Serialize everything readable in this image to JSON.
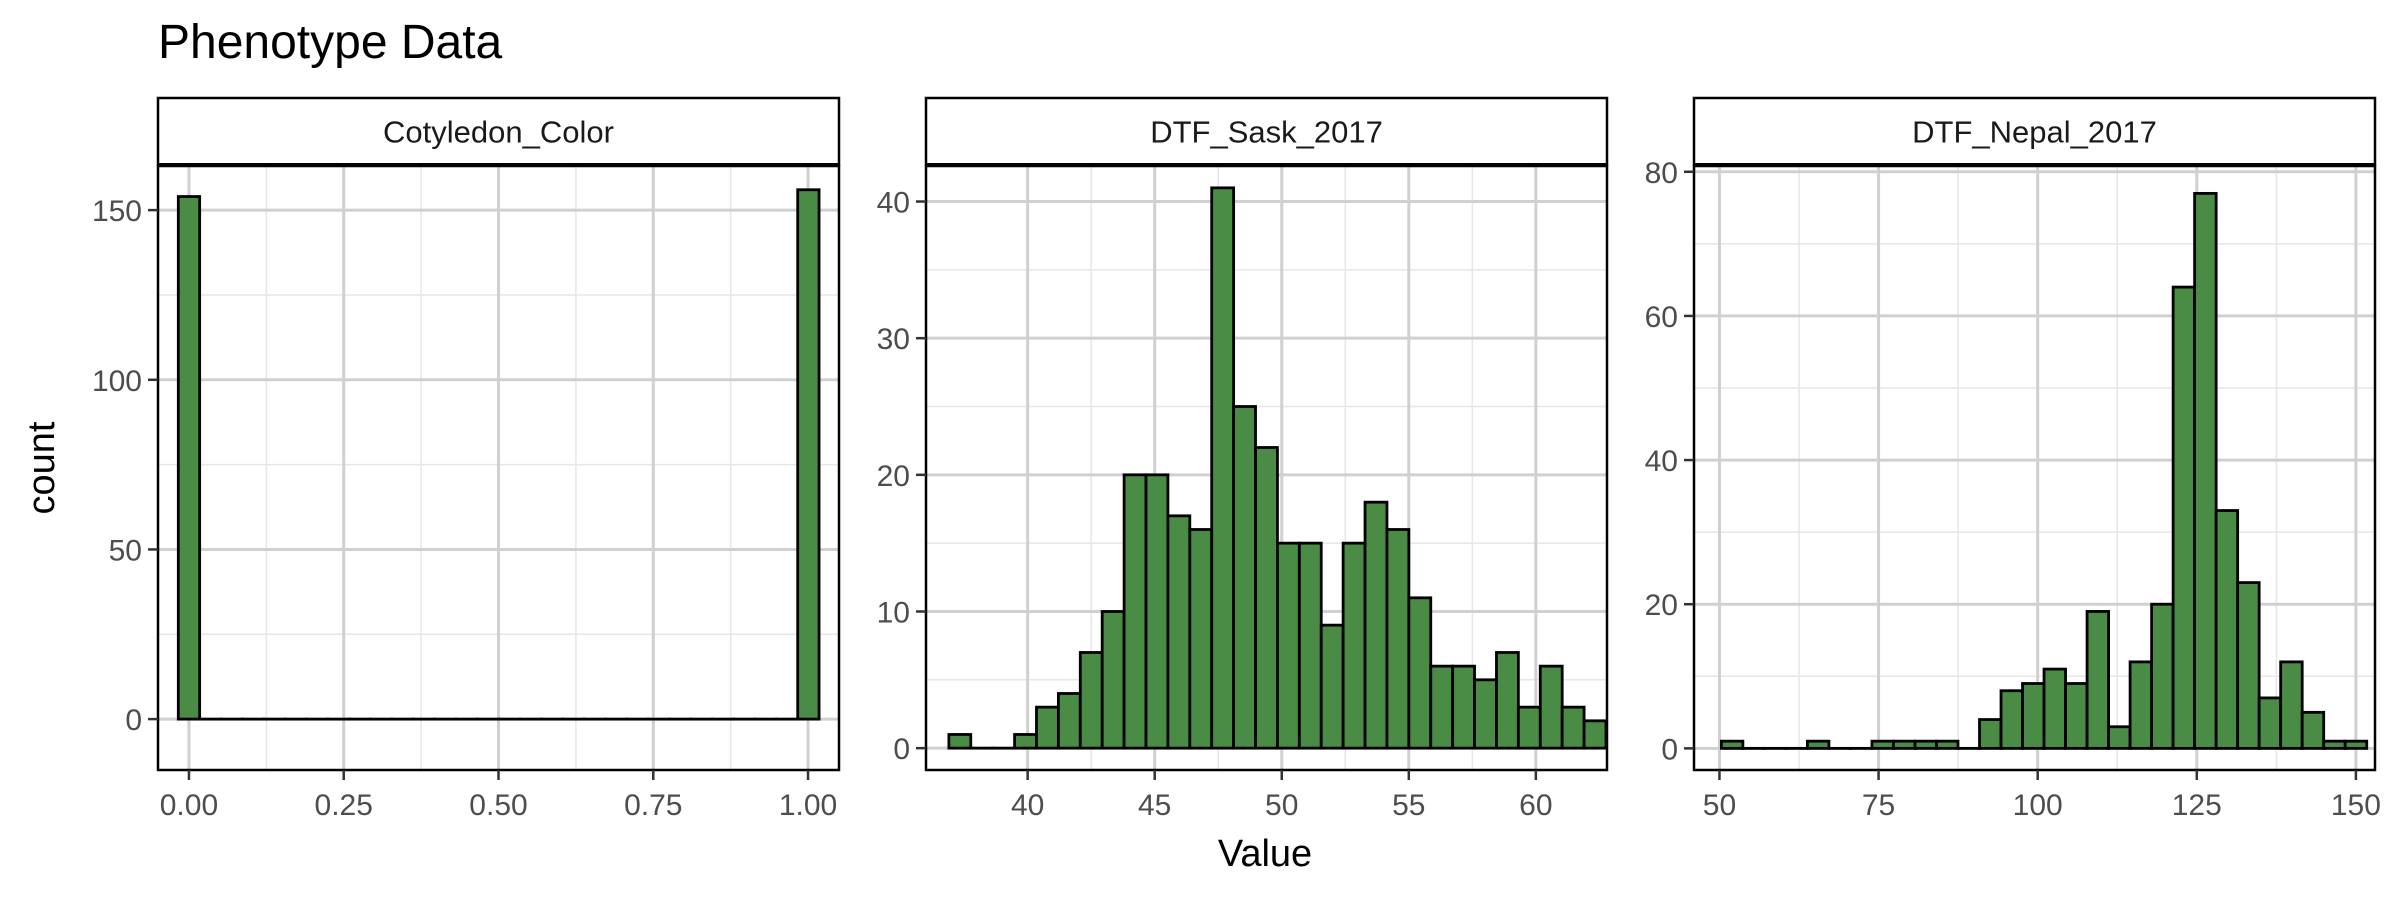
{
  "title": "Phenotype Data",
  "xlabel": "Value",
  "ylabel": "count",
  "bar_fill": "#4a8b45",
  "bar_stroke": "#000000",
  "grid_major": "#d0d0d0",
  "grid_minor": "#e6e6e6",
  "chart_data": [
    {
      "type": "bar",
      "panel": "Cotyledon_Color",
      "xlim": [
        -0.05,
        1.05
      ],
      "ylim": [
        -15,
        163
      ],
      "x_ticks": [
        0.0,
        0.25,
        0.5,
        0.75,
        1.0
      ],
      "x_tick_labels": [
        "0.00",
        "0.25",
        "0.50",
        "0.75",
        "1.00"
      ],
      "y_ticks": [
        0,
        50,
        100,
        150
      ],
      "y_tick_labels": [
        "0",
        "50",
        "100",
        "150"
      ],
      "bin_start": -0.0172,
      "bin_width": 0.0345,
      "values": [
        154,
        0,
        0,
        0,
        0,
        0,
        0,
        0,
        0,
        0,
        0,
        0,
        0,
        0,
        0,
        0,
        0,
        0,
        0,
        0,
        0,
        0,
        0,
        0,
        0,
        0,
        0,
        0,
        0,
        156
      ]
    },
    {
      "type": "bar",
      "panel": "DTF_Sask_2017",
      "xlim": [
        36.0,
        62.8
      ],
      "ylim": [
        -1.6,
        42.6
      ],
      "x_ticks": [
        40,
        45,
        50,
        55,
        60
      ],
      "x_tick_labels": [
        "40",
        "45",
        "50",
        "55",
        "60"
      ],
      "y_ticks": [
        0,
        10,
        20,
        30,
        40
      ],
      "y_tick_labels": [
        "0",
        "10",
        "20",
        "30",
        "40"
      ],
      "bin_start": 36.9,
      "bin_width": 0.862,
      "values": [
        1,
        0,
        0,
        1,
        3,
        4,
        7,
        10,
        20,
        20,
        17,
        16,
        41,
        25,
        22,
        15,
        15,
        9,
        15,
        18,
        16,
        11,
        6,
        6,
        5,
        7,
        3,
        6,
        3,
        2
      ]
    },
    {
      "type": "bar",
      "panel": "DTF_Nepal_2017",
      "xlim": [
        46.0,
        153.0
      ],
      "ylim": [
        -3,
        80.8
      ],
      "x_ticks": [
        50,
        75,
        100,
        125,
        150
      ],
      "x_tick_labels": [
        "50",
        "75",
        "100",
        "125",
        "150"
      ],
      "y_ticks": [
        0,
        20,
        40,
        60,
        80
      ],
      "y_tick_labels": [
        "0",
        "20",
        "40",
        "60",
        "80"
      ],
      "bin_start": 50.3,
      "bin_width": 3.38,
      "values": [
        1,
        0,
        0,
        0,
        1,
        0,
        0,
        1,
        1,
        1,
        1,
        0,
        4,
        8,
        9,
        11,
        9,
        19,
        3,
        12,
        20,
        64,
        77,
        33,
        23,
        7,
        12,
        5,
        1,
        1
      ]
    }
  ]
}
